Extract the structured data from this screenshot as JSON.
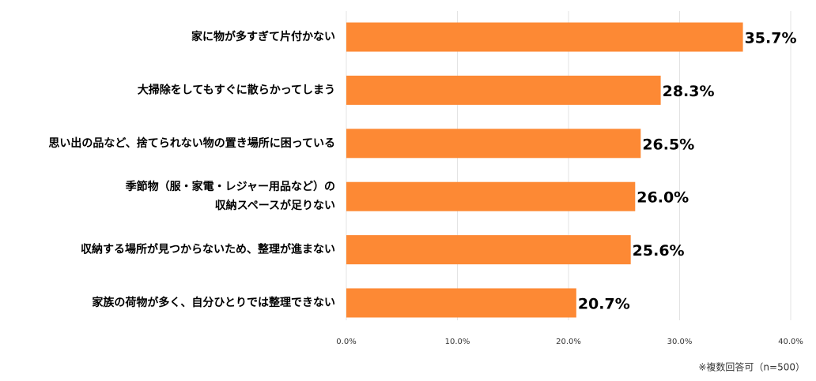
{
  "chart_data": {
    "type": "bar",
    "orientation": "horizontal",
    "categories": [
      [
        "家に物が多すぎて片付かない"
      ],
      [
        "大掃除をしてもすぐに散らかってしまう"
      ],
      [
        "思い出の品など、捨てられない物の置き場所に困っている"
      ],
      [
        "季節物（服・家電・レジャー用品など）の",
        "収納スペースが足りない"
      ],
      [
        "収納する場所が見つからないため、整理が進まない"
      ],
      [
        "家族の荷物が多く、自分ひとりでは整理できない"
      ]
    ],
    "values": [
      35.7,
      28.3,
      26.5,
      26.0,
      25.6,
      20.7
    ],
    "value_labels": [
      "35.7%",
      "28.3%",
      "26.5%",
      "26.0%",
      "25.6%",
      "20.7%"
    ],
    "color": "#fd8934",
    "xlim": [
      0,
      40
    ],
    "xticks": [
      {
        "value": 0,
        "label": "0.0%"
      },
      {
        "value": 10,
        "label": "10.0%"
      },
      {
        "value": 20,
        "label": "20.0%"
      },
      {
        "value": 30,
        "label": "30.0%"
      },
      {
        "value": 40,
        "label": "40.0%"
      }
    ],
    "grid": true,
    "note": "※複数回答可（n=500）"
  }
}
